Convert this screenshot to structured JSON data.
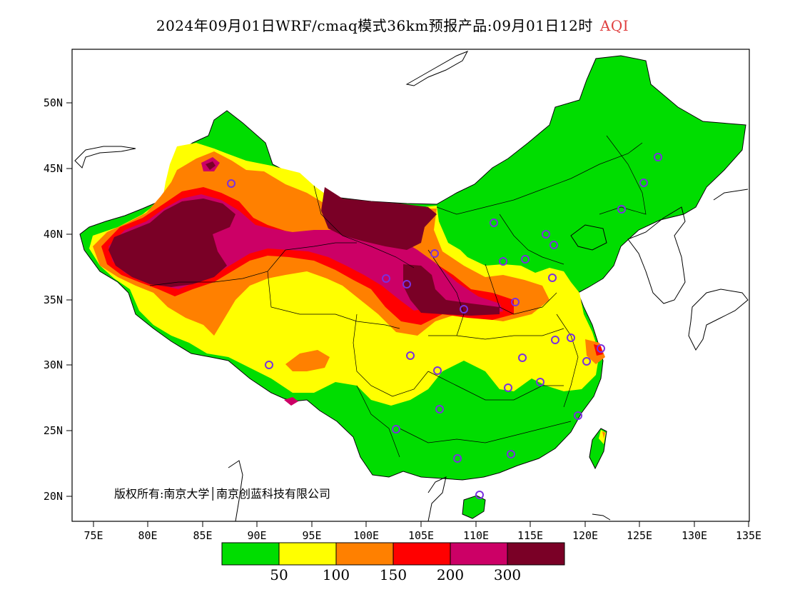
{
  "title": {
    "main": "2024年09月01日WRF/cmaq模式36km预报产品:09月01日12时",
    "variable": "AQI",
    "variable_color": "#e04040"
  },
  "axes": {
    "lat_ticks": [
      "50N",
      "45N",
      "40N",
      "35N",
      "30N",
      "25N",
      "20N"
    ],
    "lon_ticks": [
      "75E",
      "80E",
      "85E",
      "90E",
      "95E",
      "100E",
      "105E",
      "110E",
      "115E",
      "120E",
      "125E",
      "130E",
      "135E"
    ]
  },
  "copyright": "版权所有:南京大学│南京创蓝科技有限公司",
  "legend": {
    "colors": [
      "#00dd00",
      "#ffff00",
      "#ff8000",
      "#ff0000",
      "#cc0066",
      "#7a0026"
    ],
    "labels": [
      "50",
      "100",
      "150",
      "200",
      "300"
    ]
  },
  "map_colors": {
    "good": "#00dd00",
    "moderate": "#ffff00",
    "sensitive": "#ff8000",
    "unhealthy": "#ff0000",
    "very_unhealthy": "#cc0066",
    "hazardous": "#7a0026",
    "station_marker": "#7a30e0",
    "border": "#000000"
  }
}
